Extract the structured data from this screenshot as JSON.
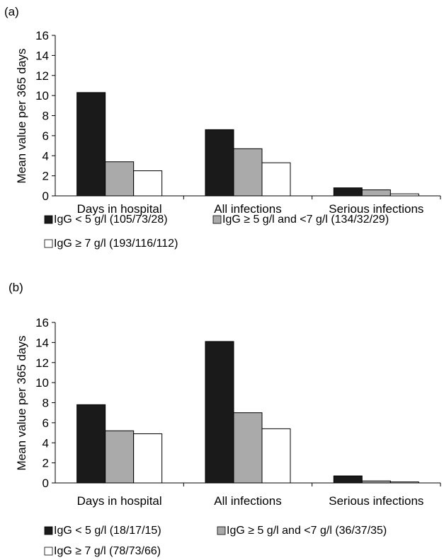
{
  "panels": [
    {
      "panel_label": "(a)",
      "legend": [
        {
          "label": "IgG < 5 g/l (105/73/28)",
          "color": "#1a1a1a"
        },
        {
          "label": "IgG ≥ 5 g/l and <7 g/l (134/32/29)",
          "color": "#aaaaaa"
        },
        {
          "label": "IgG ≥ 7 g/l (193/116/112)",
          "color": "#ffffff"
        }
      ]
    },
    {
      "panel_label": "(b)",
      "legend": [
        {
          "label": "IgG < 5 g/l (18/17/15)",
          "color": "#1a1a1a"
        },
        {
          "label": "IgG ≥ 5 g/l and <7 g/l (36/37/35)",
          "color": "#aaaaaa"
        },
        {
          "label": "IgG ≥ 7 g/l (78/73/66)",
          "color": "#ffffff"
        }
      ]
    }
  ],
  "chart_data": [
    {
      "type": "bar",
      "title": "",
      "xlabel": "",
      "ylabel": "Mean value per 365 days",
      "ylim": [
        0,
        16
      ],
      "yticks": [
        "0",
        "2",
        "4",
        "6",
        "8",
        "10",
        "12",
        "14",
        "16"
      ],
      "categories": [
        "Days in hospital",
        "All infections",
        "Serious infections"
      ],
      "series": [
        {
          "name": "IgG < 5 g/l (105/73/28)",
          "values": [
            10.3,
            6.6,
            0.8
          ]
        },
        {
          "name": "IgG ≥ 5 g/l and <7 g/l (134/32/29)",
          "values": [
            3.4,
            4.7,
            0.6
          ]
        },
        {
          "name": "IgG ≥ 7 g/l (193/116/112)",
          "values": [
            2.5,
            3.3,
            0.2
          ]
        }
      ],
      "grid": false
    },
    {
      "type": "bar",
      "title": "",
      "xlabel": "",
      "ylabel": "Mean value per 365 days",
      "ylim": [
        0,
        16
      ],
      "yticks": [
        "0",
        "2",
        "4",
        "6",
        "8",
        "10",
        "12",
        "14",
        "16"
      ],
      "categories": [
        "Days in hospital",
        "All infections",
        "Serious infections"
      ],
      "series": [
        {
          "name": "IgG < 5 g/l (18/17/15)",
          "values": [
            7.8,
            14.1,
            0.7
          ]
        },
        {
          "name": "IgG ≥ 5 g/l and <7 g/l (36/37/35)",
          "values": [
            5.2,
            7.0,
            0.2
          ]
        },
        {
          "name": "IgG ≥ 7 g/l (78/73/66)",
          "values": [
            4.9,
            5.4,
            0.1
          ]
        }
      ],
      "grid": false
    }
  ]
}
